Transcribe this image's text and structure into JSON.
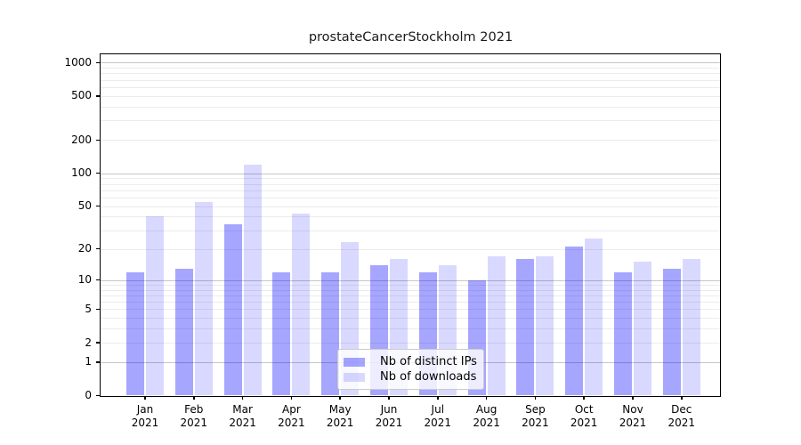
{
  "chart_data": {
    "type": "bar",
    "title": "prostateCancerStockholm 2021",
    "year": "2021",
    "months": [
      "Jan",
      "Feb",
      "Mar",
      "Apr",
      "May",
      "Jun",
      "Jul",
      "Aug",
      "Sep",
      "Oct",
      "Nov",
      "Dec"
    ],
    "series": [
      {
        "name": "Nb of distinct IPs",
        "color": "rgba(0,0,255,0.35)",
        "values": [
          12,
          13,
          34,
          12,
          12,
          14,
          12,
          10,
          16,
          21,
          12,
          13
        ]
      },
      {
        "name": "Nb of downloads",
        "color": "rgba(0,0,255,0.15)",
        "values": [
          40,
          54,
          120,
          43,
          23,
          16,
          14,
          17,
          17,
          25,
          15,
          16
        ]
      }
    ],
    "yscale": "log(value+1)",
    "ylim": [
      0,
      1200
    ],
    "yticks": [
      1000,
      500,
      200,
      100,
      50,
      20,
      10,
      5,
      2,
      1,
      0
    ],
    "grid": "on",
    "legend_position": "lower center"
  },
  "colors": {
    "major_grid": "#c6c6c6",
    "minor_grid": "#ececec",
    "spine": "#000000",
    "distinct_ips_bar": "rgba(0,0,255,0.35)",
    "downloads_bar": "rgba(0,0,255,0.15)"
  }
}
